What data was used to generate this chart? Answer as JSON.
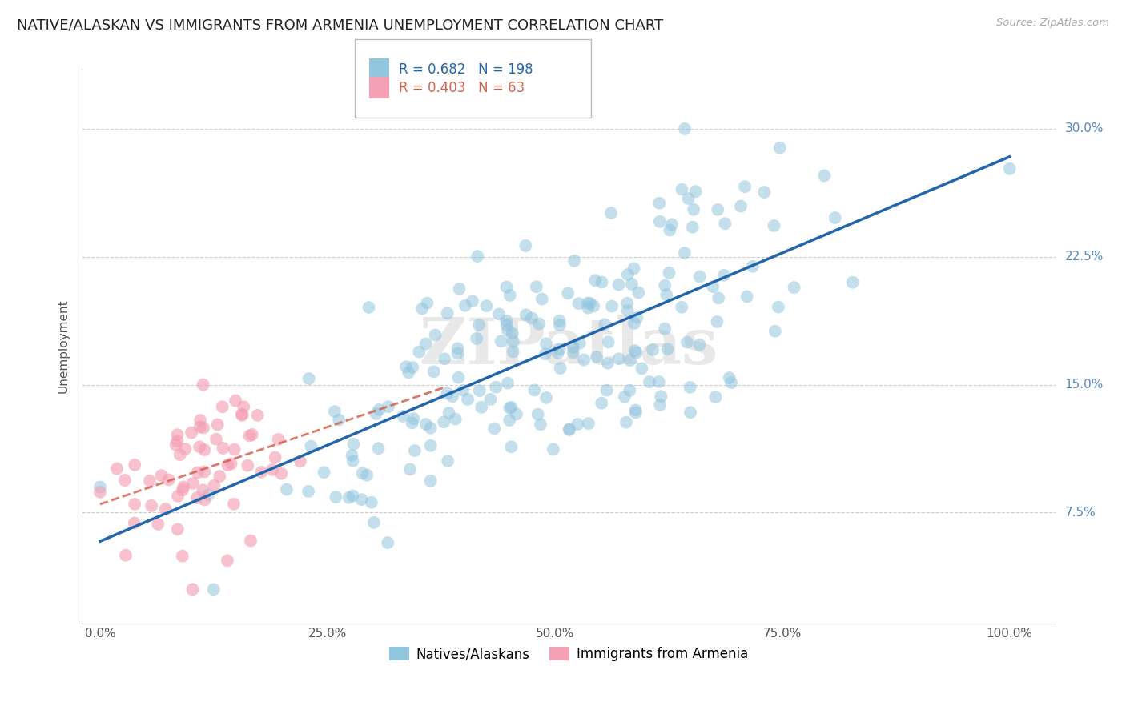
{
  "title": "NATIVE/ALASKAN VS IMMIGRANTS FROM ARMENIA UNEMPLOYMENT CORRELATION CHART",
  "source": "Source: ZipAtlas.com",
  "ylabel": "Unemployment",
  "xlim": [
    -0.02,
    1.05
  ],
  "ylim": [
    0.01,
    0.335
  ],
  "xticks": [
    0.0,
    0.25,
    0.5,
    0.75,
    1.0
  ],
  "xticklabels": [
    "0.0%",
    "25.0%",
    "50.0%",
    "75.0%",
    "100.0%"
  ],
  "yticks": [
    0.075,
    0.15,
    0.225,
    0.3
  ],
  "yticklabels": [
    "7.5%",
    "15.0%",
    "22.5%",
    "30.0%"
  ],
  "blue_R": 0.682,
  "blue_N": 198,
  "pink_R": 0.403,
  "pink_N": 63,
  "blue_color": "#92c5de",
  "pink_color": "#f4a0b5",
  "blue_line_color": "#2166ac",
  "pink_line_color": "#d6604d",
  "legend_label_blue": "Natives/Alaskans",
  "legend_label_pink": "Immigrants from Armenia",
  "watermark": "ZIPatlas",
  "background_color": "#ffffff",
  "grid_color": "#cccccc",
  "title_fontsize": 13,
  "axis_fontsize": 11,
  "tick_fontsize": 11,
  "seed": 7
}
